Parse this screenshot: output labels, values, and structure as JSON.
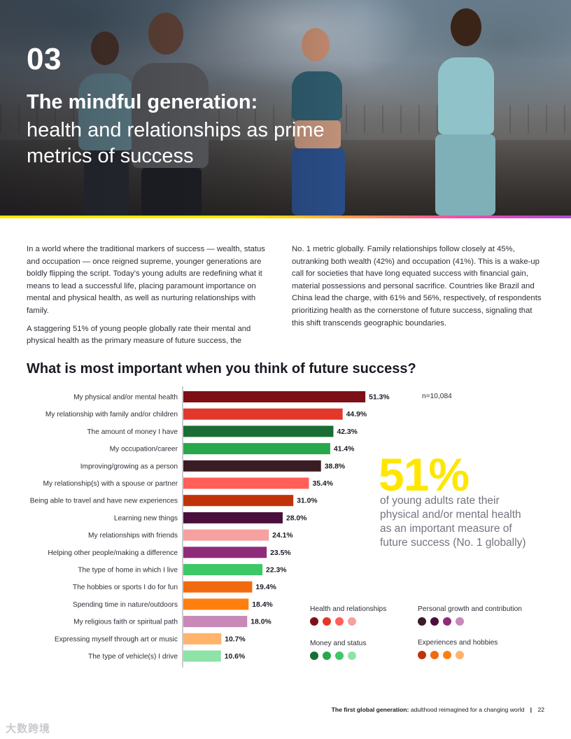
{
  "hero": {
    "number": "03",
    "title": "The mindful generation:",
    "subtitle_line1": "health and relationships as prime",
    "subtitle_line2": "metrics of success"
  },
  "body": {
    "left_p1": "In a world where the traditional markers of success — wealth, status and occupation — once reigned supreme, younger generations are boldly flipping the script. Today’s young adults are redefining what it means to lead a successful life, placing paramount importance on mental and physical health, as well as nurturing relationships with family.",
    "left_p2": "A staggering 51% of young people globally rate their mental and physical health as the primary measure of future success, the",
    "right_p1": "No. 1 metric globally. Family relationships follow closely at 45%, outranking both wealth (42%) and occupation (41%). This is a wake-up call for societies that have long equated success with financial gain, material possessions and personal sacrifice. Countries like Brazil and China lead the charge, with 61% and 56%, respectively, of respondents prioritizing health as the cornerstone of future success, signaling that this shift transcends geographic boundaries."
  },
  "chart_title": "What is most important when you think of future success?",
  "sample_note": "n=10,084",
  "chart_data": {
    "type": "bar",
    "orientation": "horizontal",
    "title": "What is most important when you think of future success?",
    "value_suffix": "%",
    "categories": [
      "My physical and/or mental health",
      "My relationship with family and/or children",
      "The amount of money I have",
      "My occupation/career",
      "Improving/growing as a person",
      "My relationship(s) with a spouse or partner",
      "Being able to travel and have new experiences",
      "Learning new things",
      "My relationships with friends",
      "Helping other people/making a difference",
      "The type of home in which I live",
      "The hobbies or sports I do for fun",
      "Spending time in nature/outdoors",
      "My religious faith or spiritual path",
      "Expressing myself through art or music",
      "The type of vehicle(s) I drive"
    ],
    "values": [
      51.3,
      44.9,
      42.3,
      41.4,
      38.8,
      35.4,
      31.0,
      28.0,
      24.1,
      23.5,
      22.3,
      19.4,
      18.4,
      18.0,
      10.7,
      10.6
    ],
    "value_labels": [
      "51.3%",
      "44.9%",
      "42.3%",
      "41.4%",
      "38.8%",
      "35.4%",
      "31.0%",
      "28.0%",
      "24.1%",
      "23.5%",
      "22.3%",
      "19.4%",
      "18.4%",
      "18.0%",
      "10.7%",
      "10.6%"
    ],
    "colors": [
      "#7d1016",
      "#e2372b",
      "#1a6e35",
      "#28a84a",
      "#3a1c24",
      "#ff5f57",
      "#c0330a",
      "#4a0f3c",
      "#f7a0a0",
      "#8f2c7a",
      "#3cc866",
      "#f26a0f",
      "#ff7f0e",
      "#c888b8",
      "#ffb36b",
      "#8ee3a8"
    ],
    "groups": [
      "Health and relationships",
      "Health and relationships",
      "Money and status",
      "Money and status",
      "Personal growth and contribution",
      "Health and relationships",
      "Experiences and hobbies",
      "Personal growth and contribution",
      "Health and relationships",
      "Personal growth and contribution",
      "Money and status",
      "Experiences and hobbies",
      "Experiences and hobbies",
      "Personal growth and contribution",
      "Experiences and hobbies",
      "Money and status"
    ],
    "xlim": [
      0,
      55
    ],
    "grid": false,
    "legend": "bottom-right"
  },
  "highlight": {
    "stat": "51%",
    "line1": "of young adults rate their",
    "line2": "physical and/or mental health",
    "line3": "as an important measure of",
    "line4": "future success (No. 1 globally)"
  },
  "legend": {
    "health": {
      "label": "Health and relationships",
      "colors": [
        "#7d1016",
        "#e2372b",
        "#ff5f57",
        "#f7a0a0"
      ]
    },
    "growth": {
      "label": "Personal growth and contribution",
      "colors": [
        "#3a1c24",
        "#4a0f3c",
        "#8f2c7a",
        "#c888b8"
      ]
    },
    "money": {
      "label": "Money and status",
      "colors": [
        "#1a6e35",
        "#28a84a",
        "#3cc866",
        "#8ee3a8"
      ]
    },
    "experiences": {
      "label": "Experiences and hobbies",
      "colors": [
        "#c0330a",
        "#f26a0f",
        "#ff7f0e",
        "#ffb36b"
      ]
    }
  },
  "footer": {
    "bold": "The first global generation:",
    "rest": "adulthood reimagined for a changing world",
    "separator": "|",
    "page": "22"
  },
  "watermark": "大数跨境"
}
